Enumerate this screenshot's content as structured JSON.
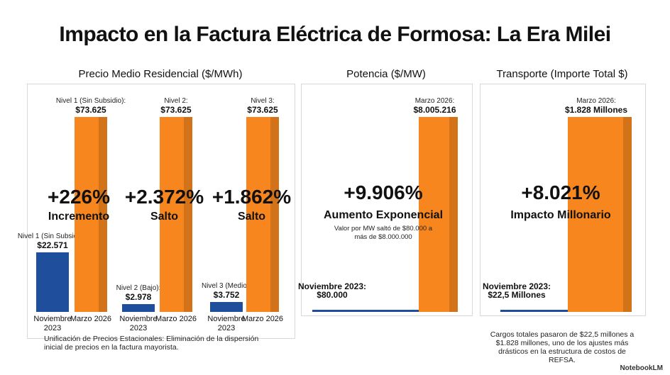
{
  "title": "Impacto en la Factura Eléctrica de Formosa: La Era Milei",
  "brand": "NotebookLM",
  "chart_data": [
    {
      "type": "grouped-bar",
      "title": "Precio Medio Residencial ($/MWh)",
      "colors": [
        "#1f4e9c",
        "#f7861e"
      ],
      "groups": [
        {
          "categories": [
            "Noviembre 2023",
            "Marzo 2026"
          ],
          "values": [
            22571,
            73625
          ],
          "value_labels": [
            "$22.571",
            "$73.625"
          ],
          "notes": [
            "Nivel 1 (Sin Subsidio):",
            "Nivel 1 (Sin Subsidio):"
          ],
          "headline": "+226%",
          "headline_label": "Incremento"
        },
        {
          "categories": [
            "Noviembre 2023",
            "Marzo 2026"
          ],
          "values": [
            2978,
            73625
          ],
          "value_labels": [
            "$2.978",
            "$73.625"
          ],
          "notes": [
            "Nivel 2 (Bajo):",
            "Nivel 2:"
          ],
          "headline": "+2.372%",
          "headline_label": "Salto"
        },
        {
          "categories": [
            "Noviembre 2023",
            "Marzo 2026"
          ],
          "values": [
            3752,
            73625
          ],
          "value_labels": [
            "$3.752",
            "$73.625"
          ],
          "notes": [
            "Nivel 3 (Medio):",
            "Nivel 3:"
          ],
          "headline": "+1.862%",
          "headline_label": "Salto"
        }
      ],
      "footnote": "Unificación de Precios Estacionales: Eliminación de la dispersión inicial de precios en la factura mayorista."
    },
    {
      "type": "bar",
      "title": "Potencia ($/MW)",
      "colors": [
        "#1f4e9c",
        "#f7861e"
      ],
      "categories": [
        "Noviembre 2023:",
        "Marzo 2026:"
      ],
      "values": [
        80000,
        8005216
      ],
      "value_labels": [
        "$80.000",
        "$8.005.216"
      ],
      "headline": "+9.906%",
      "headline_label": "Aumento Exponencial",
      "note": "Valor por MW saltó de $80.000 a más de $8.000.000"
    },
    {
      "type": "bar",
      "title": "Transporte (Importe Total $)",
      "colors": [
        "#1f4e9c",
        "#f7861e"
      ],
      "categories": [
        "Noviembre 2023:",
        "Marzo 2026:"
      ],
      "values": [
        22.5,
        1828
      ],
      "value_labels": [
        "$22,5 Millones",
        "$1.828 Millones"
      ],
      "headline": "+8.021%",
      "headline_label": "Impacto Millonario",
      "footnote": "Cargos totales pasaron de $22,5 millones a $1.828 millones, uno de los ajustes más drásticos en la estructura de costos de REFSA."
    }
  ]
}
